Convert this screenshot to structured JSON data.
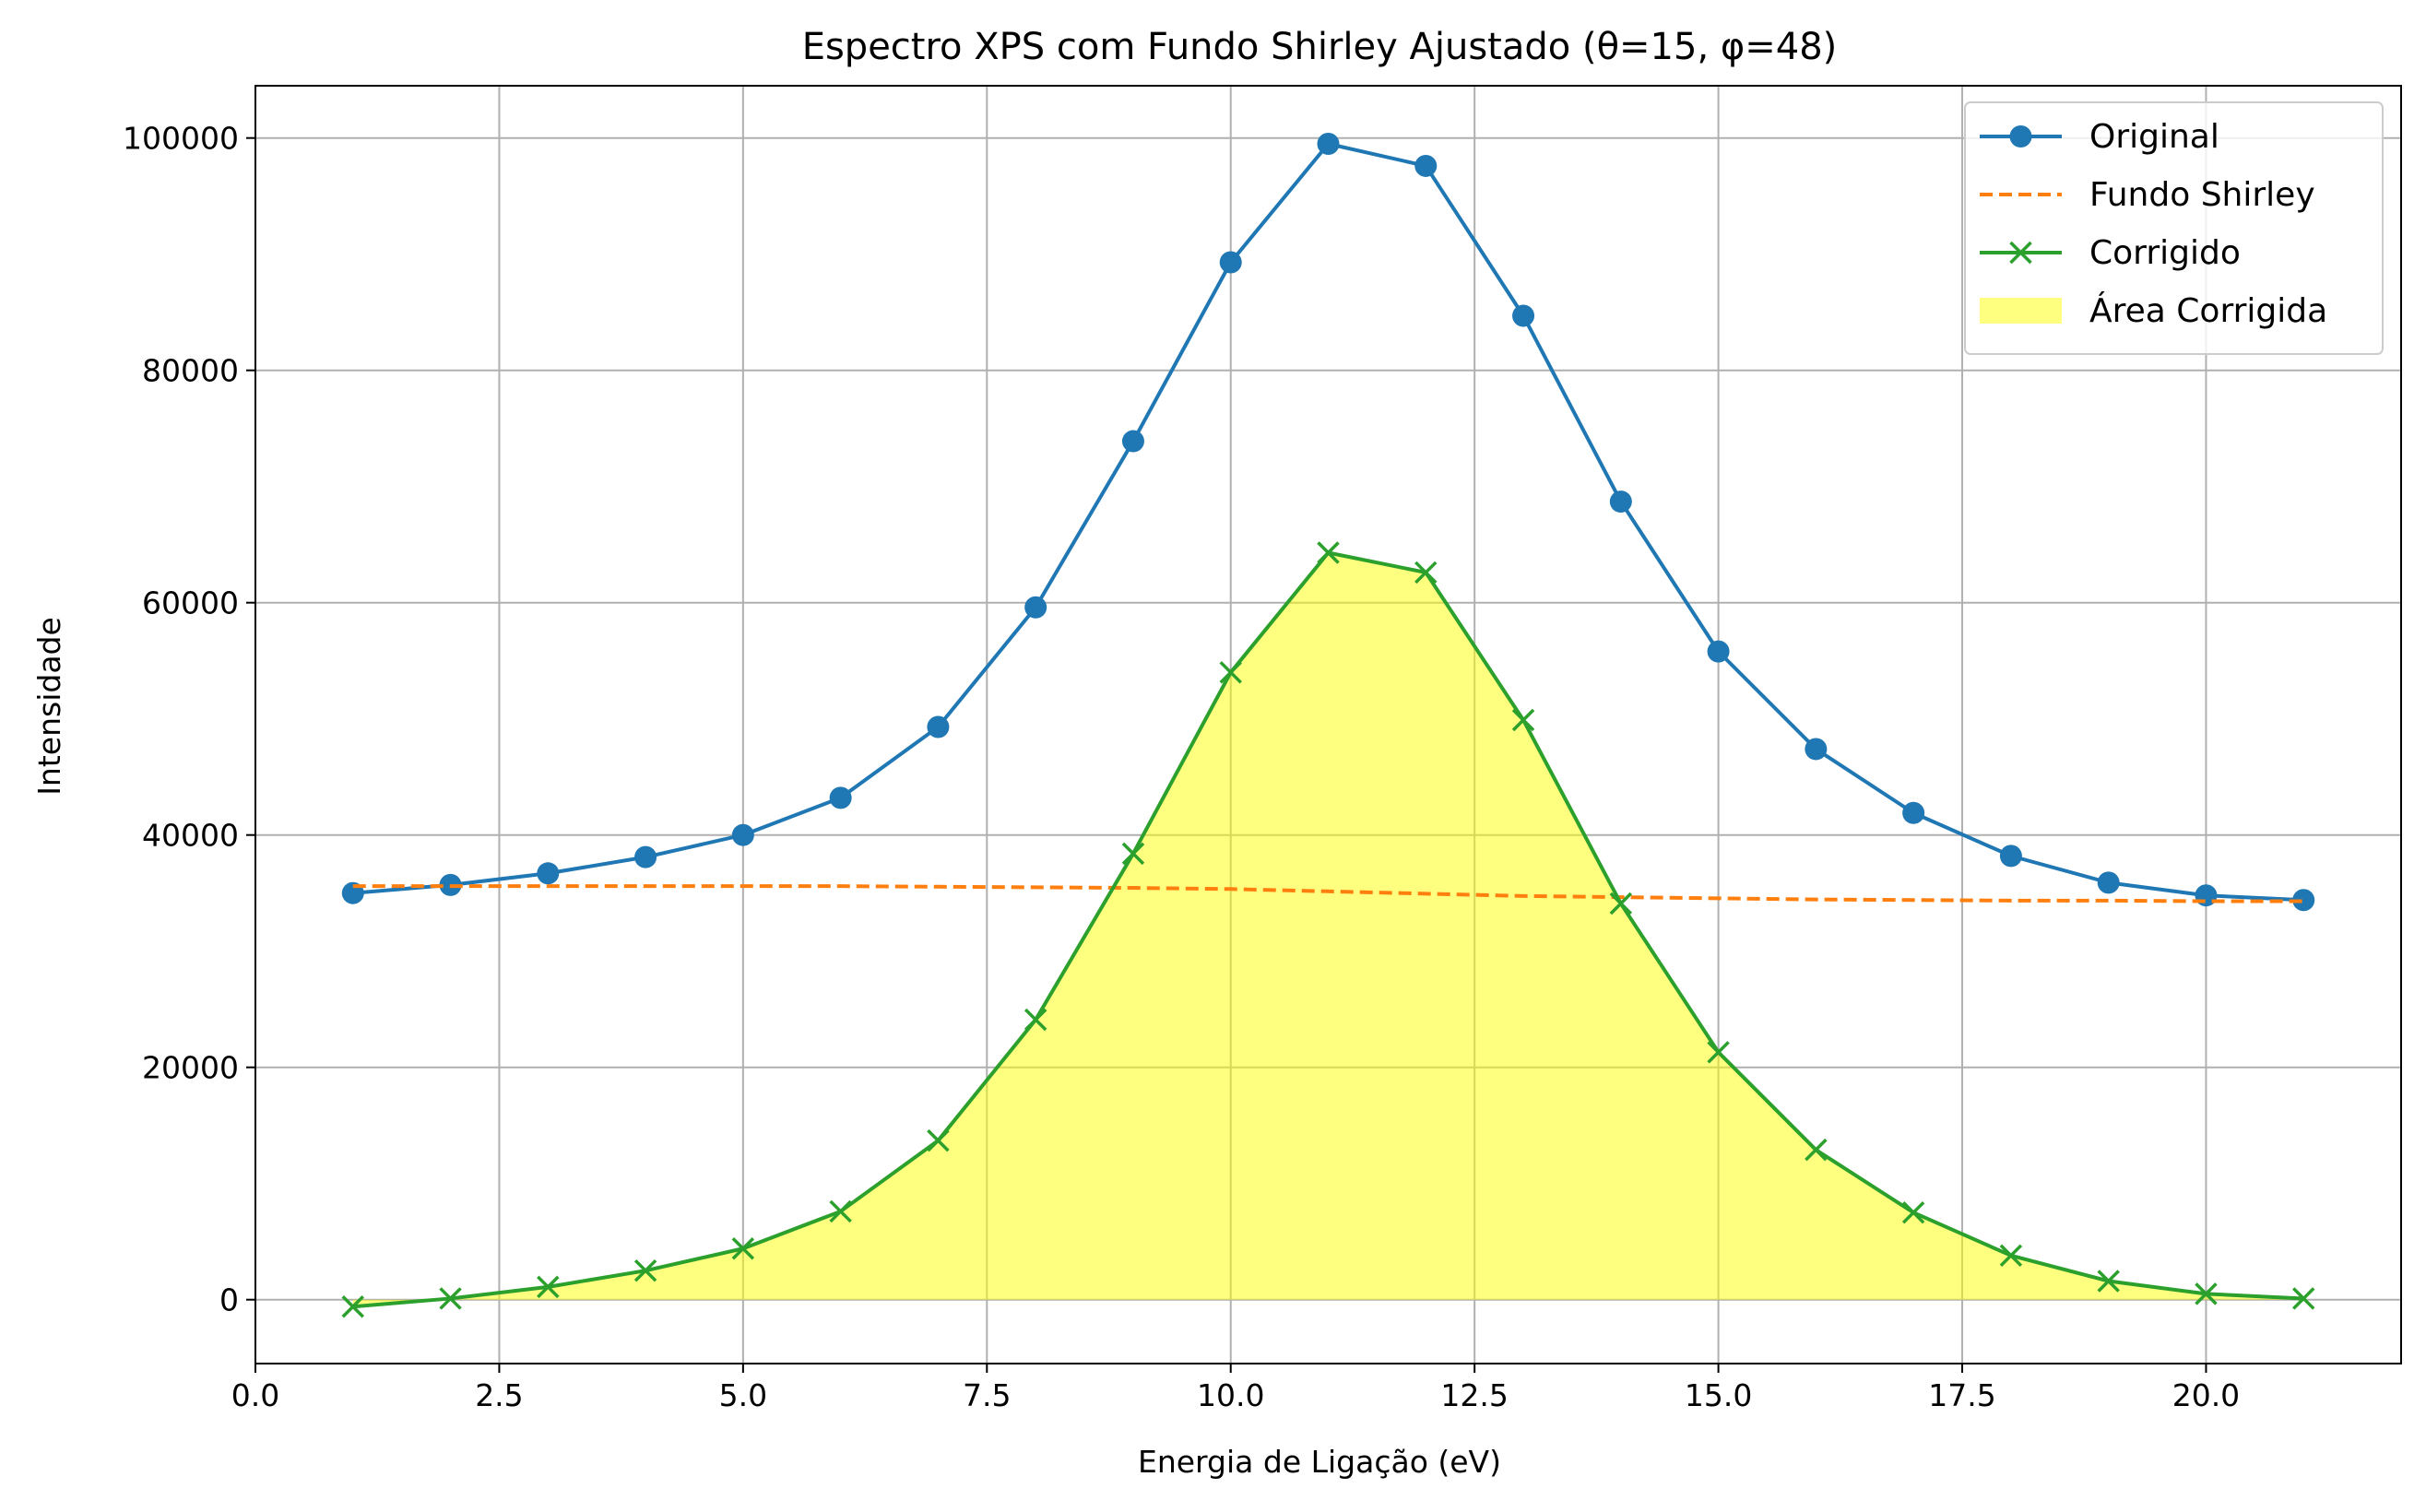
{
  "chart_data": {
    "type": "line",
    "title": "Espectro XPS com Fundo Shirley Ajustado (θ=15, φ=48)",
    "xlabel": "Energia de Ligação (eV)",
    "ylabel": "Intensidade",
    "xlim": [
      0,
      22
    ],
    "ylim": [
      -5500,
      104500
    ],
    "xticks": [
      0.0,
      2.5,
      5.0,
      7.5,
      10.0,
      12.5,
      15.0,
      17.5,
      20.0
    ],
    "xtick_labels": [
      "0.0",
      "2.5",
      "5.0",
      "7.5",
      "10.0",
      "12.5",
      "15.0",
      "17.5",
      "20.0"
    ],
    "yticks": [
      0,
      20000,
      40000,
      60000,
      80000,
      100000
    ],
    "ytick_labels": [
      "0",
      "20000",
      "40000",
      "60000",
      "80000",
      "100000"
    ],
    "grid": true,
    "legend_position": "top-right",
    "x": [
      1,
      2,
      3,
      4,
      5,
      6,
      7,
      8,
      9,
      10,
      11,
      12,
      13,
      14,
      15,
      16,
      17,
      18,
      19,
      20,
      21
    ],
    "series": [
      {
        "name": "Original",
        "style": "solid-circle",
        "color": "#1f77b4",
        "values": [
          35000,
          35700,
          36700,
          38100,
          40000,
          43200,
          49300,
          59600,
          73900,
          89300,
          99500,
          97600,
          84700,
          68700,
          55800,
          47400,
          41900,
          38200,
          35900,
          34800,
          34400
        ]
      },
      {
        "name": "Fundo Shirley",
        "style": "dashed",
        "color": "#ff7f0e",
        "values": [
          35600,
          35600,
          35600,
          35600,
          35600,
          35600,
          35550,
          35500,
          35450,
          35350,
          35150,
          34950,
          34750,
          34650,
          34550,
          34450,
          34400,
          34350,
          34350,
          34300,
          34300
        ]
      },
      {
        "name": "Corrigido",
        "style": "solid-x",
        "color": "#2ca02c",
        "values": [
          -600,
          100,
          1100,
          2500,
          4400,
          7600,
          13700,
          24100,
          38400,
          54000,
          64300,
          62600,
          49900,
          34100,
          21300,
          12900,
          7500,
          3800,
          1600,
          500,
          100
        ]
      }
    ],
    "fill": {
      "name": "Área Corrigida",
      "color": "#ffff00",
      "opacity": 0.5,
      "of_series": "Corrigido"
    }
  }
}
